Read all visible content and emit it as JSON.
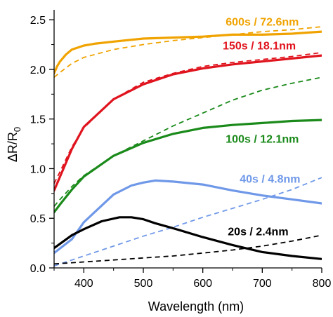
{
  "chart_data": {
    "type": "line",
    "title": "",
    "xlabel": "Wavelength (nm)",
    "ylabel_main": "ΔR/R",
    "ylabel_sub": "0",
    "xlim": [
      350,
      800
    ],
    "ylim": [
      0,
      2.6
    ],
    "x_ticks": [
      400,
      500,
      600,
      700,
      800
    ],
    "y_ticks": [
      0.0,
      0.5,
      1.0,
      1.5,
      2.0,
      2.5
    ],
    "x_tick_labels": [
      "400",
      "500",
      "600",
      "700",
      "800"
    ],
    "y_tick_labels": [
      "0.0",
      "0.5",
      "1.0",
      "1.5",
      "2.0",
      "2.5"
    ],
    "grid": false,
    "series": [
      {
        "name": "600s / 72.6nm",
        "color": "#f0a300",
        "measured": {
          "x": [
            350,
            355,
            360,
            370,
            380,
            400,
            420,
            450,
            500,
            550,
            600,
            650,
            700,
            750,
            800
          ],
          "y": [
            1.96,
            2.03,
            2.08,
            2.15,
            2.2,
            2.24,
            2.26,
            2.28,
            2.31,
            2.32,
            2.33,
            2.35,
            2.35,
            2.36,
            2.38
          ]
        },
        "fit": {
          "x": [
            350,
            360,
            380,
            400,
            450,
            500,
            550,
            600,
            650,
            700,
            750,
            800
          ],
          "y": [
            1.92,
            1.97,
            2.06,
            2.12,
            2.2,
            2.25,
            2.29,
            2.32,
            2.35,
            2.38,
            2.4,
            2.43
          ]
        }
      },
      {
        "name": "150s / 18.1nm",
        "color": "#e0141e",
        "measured": {
          "x": [
            350,
            360,
            380,
            400,
            450,
            500,
            550,
            600,
            650,
            700,
            750,
            800
          ],
          "y": [
            0.78,
            0.92,
            1.2,
            1.42,
            1.7,
            1.85,
            1.95,
            2.01,
            2.05,
            2.08,
            2.11,
            2.14
          ]
        },
        "fit": {
          "x": [
            350,
            360,
            380,
            400,
            450,
            500,
            550,
            600,
            650,
            700,
            750,
            800
          ],
          "y": [
            0.85,
            0.97,
            1.22,
            1.41,
            1.7,
            1.87,
            1.96,
            2.03,
            2.07,
            2.1,
            2.13,
            2.17
          ]
        }
      },
      {
        "name": "100s / 12.1nm",
        "color": "#1a8a1a",
        "measured": {
          "x": [
            350,
            360,
            380,
            400,
            450,
            500,
            550,
            600,
            650,
            700,
            750,
            800
          ],
          "y": [
            0.56,
            0.64,
            0.79,
            0.92,
            1.13,
            1.26,
            1.35,
            1.41,
            1.44,
            1.46,
            1.48,
            1.49
          ]
        },
        "fit": {
          "x": [
            350,
            360,
            380,
            400,
            450,
            500,
            550,
            600,
            650,
            700,
            750,
            800
          ],
          "y": [
            0.62,
            0.69,
            0.82,
            0.93,
            1.13,
            1.28,
            1.43,
            1.56,
            1.69,
            1.79,
            1.86,
            1.92
          ]
        }
      },
      {
        "name": "40s / 4.8nm",
        "color": "#6f98e8",
        "measured": {
          "x": [
            350,
            380,
            400,
            450,
            480,
            500,
            520,
            550,
            600,
            650,
            700,
            750,
            800
          ],
          "y": [
            0.15,
            0.29,
            0.46,
            0.74,
            0.83,
            0.86,
            0.88,
            0.87,
            0.84,
            0.78,
            0.73,
            0.69,
            0.65
          ]
        },
        "fit": {
          "x": [
            350,
            400,
            450,
            500,
            550,
            600,
            650,
            700,
            750,
            800
          ],
          "y": [
            0.02,
            0.12,
            0.22,
            0.32,
            0.41,
            0.51,
            0.6,
            0.69,
            0.79,
            0.91
          ]
        }
      },
      {
        "name": "20s / 2.4nm",
        "color": "#000000",
        "measured": {
          "x": [
            350,
            380,
            400,
            430,
            460,
            480,
            500,
            520,
            550,
            600,
            650,
            700,
            750,
            800
          ],
          "y": [
            0.2,
            0.33,
            0.39,
            0.47,
            0.51,
            0.51,
            0.49,
            0.45,
            0.4,
            0.31,
            0.23,
            0.16,
            0.12,
            0.09
          ]
        },
        "fit": {
          "x": [
            350,
            400,
            450,
            500,
            550,
            600,
            650,
            700,
            750,
            800
          ],
          "y": [
            0.04,
            0.06,
            0.08,
            0.1,
            0.12,
            0.15,
            0.18,
            0.22,
            0.27,
            0.33
          ]
        }
      }
    ]
  }
}
